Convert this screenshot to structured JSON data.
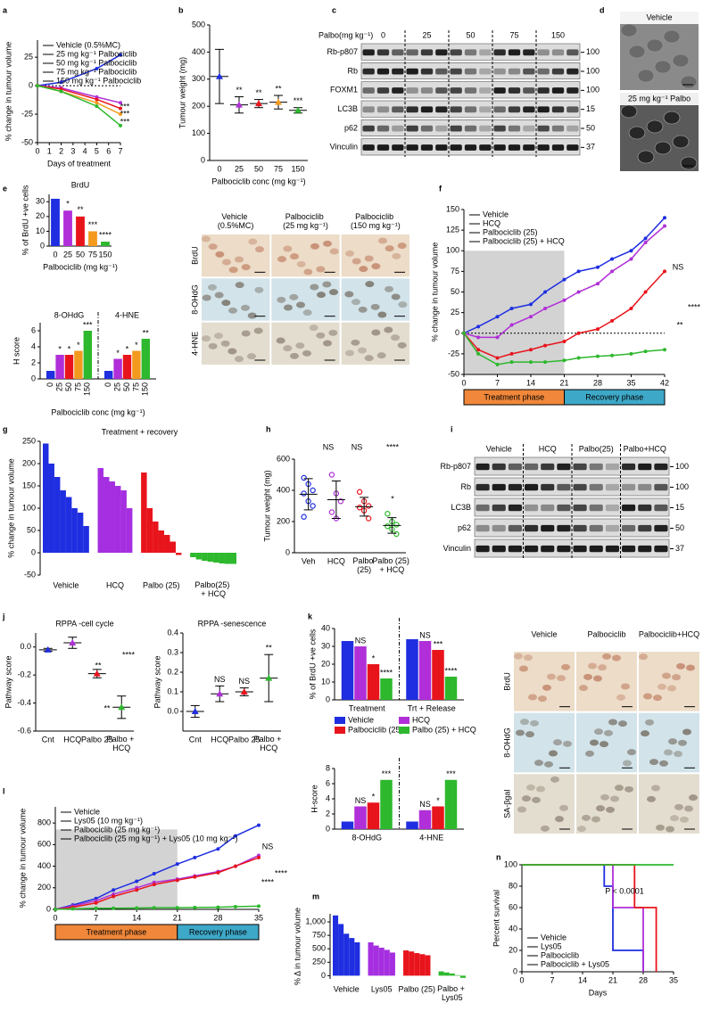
{
  "chart_data": [
    {
      "type": "line",
      "label": "a",
      "x": [
        0,
        2,
        5,
        7
      ],
      "xlim": [
        0,
        7
      ],
      "xticks": [
        0,
        1,
        2,
        3,
        4,
        5,
        6,
        7
      ],
      "ylim": [
        -50,
        40
      ],
      "yticks": [
        -50,
        -25,
        0,
        25
      ],
      "zero_line": true,
      "xlabel": "Days of treatment",
      "ylabel": "% change in tumour volume",
      "legend": "upper left",
      "series": [
        {
          "name": "Vehicle (0.5%MC)",
          "color": "#1f2ee0",
          "values": [
            0,
            3,
            15,
            27
          ]
        },
        {
          "name": "25 mg kg⁻¹ Palbociclib",
          "color": "#b02fd8",
          "values": [
            0,
            -2,
            -10,
            -15
          ]
        },
        {
          "name": "50 mg kg⁻¹ Palbociclib",
          "color": "#e8141c",
          "values": [
            0,
            -3,
            -12,
            -20
          ]
        },
        {
          "name": "75 mg kg⁻¹ Palbociclib",
          "color": "#f39a1e",
          "values": [
            0,
            -5,
            -15,
            -25
          ]
        },
        {
          "name": "150 mg kg⁻¹ Palbociclib",
          "color": "#2db82d",
          "values": [
            0,
            -5,
            -18,
            -35
          ]
        }
      ],
      "annotations": [
        "***",
        "***",
        "***"
      ]
    },
    {
      "type": "dot",
      "label": "b",
      "categories": [
        "0",
        "25",
        "50",
        "75",
        "150"
      ],
      "colors": [
        "#1f2ee0",
        "#b02fd8",
        "#e8141c",
        "#f39a1e",
        "#2db82d"
      ],
      "values": [
        310,
        205,
        210,
        215,
        185
      ],
      "errors": [
        100,
        30,
        15,
        25,
        10
      ],
      "ylim": [
        0,
        500
      ],
      "yticks": [
        0,
        100,
        200,
        300,
        400,
        500
      ],
      "xlabel": "Palbociclib conc (mg kg⁻¹)",
      "ylabel": "Tumour weight (mg)",
      "stars": [
        null,
        "**",
        "**",
        "**",
        "***"
      ]
    },
    {
      "type": "blot",
      "label": "c",
      "header": "Palbo(mg kg⁻¹)",
      "lanes": [
        "0",
        "25",
        "50",
        "75",
        "150"
      ],
      "rows": [
        "Rb-p807",
        "Rb",
        "FOXM1",
        "LC3B",
        "p62",
        "Vinculin"
      ],
      "sizes": [
        100,
        100,
        100,
        15,
        50,
        37
      ]
    },
    {
      "type": "image",
      "label": "d",
      "rows": [
        "Vehicle",
        "25 mg kg⁻¹ Palbo"
      ]
    },
    {
      "type": "bar",
      "label": "e",
      "title": "BrdU",
      "categories": [
        "0",
        "25",
        "50",
        "75",
        "150"
      ],
      "colors": [
        "#1f2ee0",
        "#b02fd8",
        "#e8141c",
        "#f39a1e",
        "#2db82d"
      ],
      "values": [
        32,
        24,
        20,
        10,
        3
      ],
      "ylim": [
        0,
        35
      ],
      "yticks": [
        0,
        10,
        20,
        30
      ],
      "ylabel": "% of BrdU +ve cells",
      "xlabel": "Palbociclib (mg kg⁻¹)",
      "stars": [
        null,
        "*",
        "**",
        "***",
        "****"
      ]
    },
    {
      "type": "groupbar",
      "bar_labels": true,
      "categories": [
        "8-OHdG",
        "4-HNE"
      ],
      "ylim": [
        0,
        7
      ],
      "yticks": [
        0,
        2,
        4,
        6
      ],
      "ylabel": "H score",
      "xlabel": "Palbociclib conc (mg kg⁻¹)",
      "series": [
        {
          "name": "0",
          "color": "#1f2ee0",
          "values": [
            1,
            1
          ],
          "stars": [
            null,
            null
          ]
        },
        {
          "name": "25",
          "color": "#b02fd8",
          "values": [
            3,
            2.5
          ],
          "stars": [
            "*",
            "*"
          ]
        },
        {
          "name": "50",
          "color": "#e8141c",
          "values": [
            3,
            3
          ],
          "stars": [
            "*",
            "*"
          ]
        },
        {
          "name": "75",
          "color": "#f39a1e",
          "values": [
            3.5,
            3.5
          ],
          "stars": [
            "*",
            "*"
          ]
        },
        {
          "name": "150",
          "color": "#2db82d",
          "values": [
            6,
            5
          ],
          "stars": [
            "***",
            "**"
          ]
        }
      ]
    },
    {
      "type": "micrograph",
      "columns": [
        "Vehicle (0.5%MC)",
        "Palbociclib (25 mg kg⁻¹)",
        "Palbociclib (150 mg kg⁻¹)"
      ],
      "rows": [
        "BrdU",
        "8-OHdG",
        "4-HNE"
      ]
    },
    {
      "type": "line",
      "label": "f",
      "x": [
        0,
        3,
        7,
        10,
        14,
        17,
        21,
        24,
        28,
        31,
        35,
        38,
        42
      ],
      "xlim": [
        0,
        42
      ],
      "xticks": [
        0,
        7,
        14,
        21,
        28,
        35,
        42
      ],
      "ylim": [
        -50,
        150
      ],
      "yticks": [
        -50,
        -25,
        0,
        25,
        50,
        75,
        100,
        125,
        150
      ],
      "zero_line": true,
      "ylabel": "% change in tumour volume",
      "legend": "upper left",
      "shade": {
        "x": [
          0,
          21
        ],
        "y": [
          -50,
          100
        ]
      },
      "phases": [
        "Treatment phase",
        "Recovery phase"
      ],
      "series": [
        {
          "name": "Vehicle",
          "color": "#1f2ee0",
          "values": [
            0,
            8,
            20,
            30,
            35,
            50,
            65,
            75,
            80,
            90,
            100,
            115,
            140
          ]
        },
        {
          "name": "HCQ",
          "color": "#b02fd8",
          "values": [
            0,
            -5,
            -5,
            10,
            20,
            30,
            40,
            50,
            60,
            75,
            90,
            110,
            130
          ]
        },
        {
          "name": "Palbociclib (25)",
          "color": "#e8141c",
          "values": [
            0,
            -20,
            -30,
            -25,
            -20,
            -15,
            -10,
            0,
            5,
            15,
            30,
            50,
            75
          ]
        },
        {
          "name": "Palbociclib (25) + HCQ",
          "color": "#2db82d",
          "values": [
            0,
            -25,
            -38,
            -35,
            -35,
            -35,
            -33,
            -30,
            -28,
            -27,
            -25,
            -22,
            -20
          ]
        }
      ],
      "annotations": [
        "NS",
        "****",
        "**"
      ]
    },
    {
      "type": "waterfall",
      "label": "g",
      "title": "Treatment + recovery",
      "ylabel": "% change in tumour volume",
      "ylim": [
        -50,
        250
      ],
      "yticks": [
        -50,
        0,
        50,
        100,
        150,
        200,
        250
      ],
      "series": [
        {
          "name": "Vehicle",
          "color": "#1f2ee0",
          "values": [
            245,
            200,
            170,
            140,
            125,
            100,
            90,
            60
          ]
        },
        {
          "name": "HCQ",
          "color": "#a52fe0",
          "values": [
            190,
            170,
            160,
            150,
            140,
            100
          ]
        },
        {
          "name": "Palbo (25)",
          "color": "#e8141c",
          "values": [
            180,
            100,
            70,
            50,
            40,
            25,
            -5
          ]
        },
        {
          "name": "Palbo(25) + HCQ",
          "color": "#2db82d",
          "values": [
            -10,
            -15,
            -18,
            -20,
            -22,
            -24,
            -25,
            -25
          ]
        }
      ]
    },
    {
      "type": "dot",
      "label": "h",
      "categories": [
        "Veh",
        "HCQ",
        "Palbo (25)",
        "Palbo (25) + HCQ"
      ],
      "colors": [
        "#1f2ee0",
        "#b02fd8",
        "#e8141c",
        "#2db82d"
      ],
      "values": [
        375,
        340,
        295,
        175
      ],
      "errors": [
        100,
        120,
        60,
        50
      ],
      "points": [
        [
          480,
          440,
          400,
          380,
          330,
          300,
          230
        ],
        [
          500,
          380,
          330,
          260,
          220
        ],
        [
          390,
          330,
          300,
          290,
          270,
          220
        ],
        [
          250,
          200,
          180,
          170,
          150,
          120
        ]
      ],
      "ylim": [
        0,
        600
      ],
      "yticks": [
        0,
        200,
        400,
        600
      ],
      "ylabel": "Tumour weight (mg)",
      "annotations": [
        "NS",
        "NS",
        "****",
        "*"
      ]
    },
    {
      "type": "blot",
      "label": "i",
      "lanes": [
        "Vehicle",
        "HCQ",
        "Palbo(25)",
        "Palbo+HCQ"
      ],
      "rows": [
        "Rb-p807",
        "Rb",
        "LC3B",
        "p62",
        "Vinculin"
      ],
      "sizes": [
        100,
        100,
        15,
        50,
        37
      ]
    },
    {
      "type": "dot",
      "label": "j",
      "title": "RPPA -cell cycle",
      "categories": [
        "Cnt",
        "HCQ",
        "Palbo 25",
        "Palbo + HCQ"
      ],
      "colors": [
        "#1f2ee0",
        "#b02fd8",
        "#e8141c",
        "#2db82d"
      ],
      "values": [
        -0.02,
        0.03,
        -0.19,
        -0.43
      ],
      "errors": [
        0.01,
        0.04,
        0.03,
        0.08
      ],
      "ylim": [
        -0.6,
        0.1
      ],
      "yticks": [
        -0.6,
        -0.4,
        -0.2,
        {
          "value": 0,
          "label": "0.0"
        }
      ],
      "ylabel": "Pathway score",
      "annotations": [
        "**",
        "****",
        "**"
      ]
    },
    {
      "type": "dot",
      "title": "RPPA -senescence",
      "categories": [
        "Cnt",
        "HCQ",
        "Palbo 25",
        "Palbo + HCQ"
      ],
      "colors": [
        "#1f2ee0",
        "#b02fd8",
        "#e8141c",
        "#2db82d"
      ],
      "values": [
        0,
        0.09,
        0.1,
        0.17
      ],
      "errors": [
        0.03,
        0.04,
        0.02,
        0.12
      ],
      "ylim": [
        -0.1,
        0.4
      ],
      "yticks": [
        {
          "value": 0,
          "label": "0.0"
        },
        0.1,
        0.2,
        0.3,
        0.4
      ],
      "ylabel": "Pathway score",
      "stars": [
        null,
        "NS",
        "NS",
        "**"
      ]
    },
    {
      "type": "groupbar",
      "label": "k",
      "legend": true,
      "categories": [
        "Treatment",
        "Trt + Release"
      ],
      "ylim": [
        0,
        40
      ],
      "yticks": [
        0,
        10,
        20,
        30,
        40
      ],
      "ylabel": "% of BrdU +ve cells",
      "series": [
        {
          "name": "Vehicle",
          "color": "#1f2ee0",
          "values": [
            33,
            34
          ],
          "stars": [
            null,
            null
          ]
        },
        {
          "name": "HCQ",
          "color": "#b02fd8",
          "values": [
            30,
            33
          ],
          "stars": [
            "NS",
            "NS"
          ]
        },
        {
          "name": "Palbociclib (25)",
          "color": "#e8141c",
          "values": [
            20,
            28
          ],
          "stars": [
            "*",
            "***"
          ]
        },
        {
          "name": "Palbo (25) + HCQ",
          "color": "#2db82d",
          "values": [
            12,
            13
          ],
          "stars": [
            "****",
            "****"
          ]
        }
      ]
    },
    {
      "type": "groupbar",
      "categories": [
        "8-OHdG",
        "4-HNE"
      ],
      "ylim": [
        0,
        8
      ],
      "yticks": [
        0,
        2,
        4,
        6,
        8
      ],
      "ylabel": "H-score",
      "series": [
        {
          "name": "Vehicle",
          "color": "#1f2ee0",
          "values": [
            1,
            1
          ],
          "stars": [
            null,
            null
          ]
        },
        {
          "name": "HCQ",
          "color": "#b02fd8",
          "values": [
            3,
            2.5
          ],
          "stars": [
            "NS",
            "NS"
          ]
        },
        {
          "name": "Palbociclib (25)",
          "color": "#e8141c",
          "values": [
            3.5,
            3
          ],
          "stars": [
            "*",
            "*"
          ]
        },
        {
          "name": "Palbo (25) + HCQ",
          "color": "#2db82d",
          "values": [
            6.5,
            6.5
          ],
          "stars": [
            "***",
            "***"
          ]
        }
      ]
    },
    {
      "type": "micrograph",
      "columns": [
        "Vehicle",
        "Palbociclib",
        "Palbociclib+HCQ"
      ],
      "rows": [
        "BrdU",
        "8-OHdG",
        "SA-βgal"
      ]
    },
    {
      "type": "line",
      "label": "l",
      "x": [
        0,
        3,
        7,
        10,
        14,
        17,
        21,
        24,
        28,
        31,
        35
      ],
      "xlim": [
        0,
        35
      ],
      "xticks": [
        0,
        7,
        14,
        21,
        28,
        35
      ],
      "ylim": [
        0,
        950
      ],
      "yticks": [
        0,
        200,
        400,
        600,
        800
      ],
      "zero_line": true,
      "ylabel": "% change in tumour volume",
      "legend": "upper left",
      "shade": {
        "x": [
          0,
          21
        ],
        "y": [
          0,
          740
        ]
      },
      "phases": [
        "Treatment phase",
        "Recovery phase"
      ],
      "series": [
        {
          "name": "Vehicle",
          "color": "#1f2ee0",
          "values": [
            0,
            40,
            100,
            180,
            260,
            330,
            420,
            480,
            560,
            680,
            780
          ]
        },
        {
          "name": "Lys05 (10 mg kg⁻¹)",
          "color": "#b02fd8",
          "values": [
            0,
            30,
            80,
            140,
            200,
            250,
            280,
            310,
            350,
            400,
            500
          ]
        },
        {
          "name": "Palbociclib (25 mg kg⁻¹)",
          "color": "#e8141c",
          "values": [
            0,
            20,
            60,
            120,
            180,
            230,
            270,
            300,
            340,
            400,
            480
          ]
        },
        {
          "name": "Palbociclib (25 mg kg⁻¹) + Lys05 (10 mg kg⁻¹)",
          "color": "#2db82d",
          "values": [
            0,
            5,
            10,
            10,
            12,
            15,
            15,
            18,
            20,
            25,
            30
          ]
        }
      ],
      "annotations": [
        "NS",
        "****",
        "****"
      ]
    },
    {
      "type": "waterfall",
      "label": "m",
      "ylabel": "% Δ in tumour volume",
      "ylim": [
        -60,
        1150
      ],
      "yticks": [
        0,
        250,
        500,
        750,
        {
          "value": 1000,
          "label": "1,000"
        }
      ],
      "series": [
        {
          "name": "Vehicle",
          "color": "#1f2ee0",
          "values": [
            1120,
            960,
            780,
            700,
            620
          ]
        },
        {
          "name": "Lys05",
          "color": "#a52fe0",
          "values": [
            620,
            560,
            520,
            480,
            430
          ]
        },
        {
          "name": "Palbo (25)",
          "color": "#e8141c",
          "values": [
            470,
            450,
            420,
            400,
            380
          ]
        },
        {
          "name": "Palbo + Lys05",
          "color": "#2db82d",
          "values": [
            80,
            60,
            40,
            10,
            -40
          ]
        }
      ]
    },
    {
      "type": "step",
      "label": "n",
      "xlim": [
        0,
        35
      ],
      "xticks": [
        0,
        7,
        14,
        21,
        28,
        35
      ],
      "ylim": [
        0,
        100
      ],
      "yticks": [
        0,
        20,
        40,
        60,
        80,
        100
      ],
      "xlabel": "Days",
      "ylabel": "Percent survival",
      "legend": "lower left",
      "series": [
        {
          "name": "Vehicle",
          "color": "#1f2ee0",
          "x": [
            0,
            19,
            19,
            21,
            21,
            28,
            28
          ],
          "values": [
            100,
            100,
            80,
            80,
            20,
            20,
            0
          ]
        },
        {
          "name": "Lys05",
          "color": "#b02fd8",
          "x": [
            0,
            21,
            21,
            28,
            28
          ],
          "values": [
            100,
            100,
            60,
            60,
            0
          ]
        },
        {
          "name": "Palbociclib",
          "color": "#e8141c",
          "x": [
            0,
            26,
            26,
            31,
            31
          ],
          "values": [
            100,
            100,
            60,
            60,
            0
          ]
        },
        {
          "name": "Palbociclib + Lys05",
          "color": "#2db82d",
          "x": [
            0,
            35
          ],
          "values": [
            100,
            100
          ]
        }
      ],
      "annotations": [
        "P < 0.0001"
      ]
    }
  ]
}
